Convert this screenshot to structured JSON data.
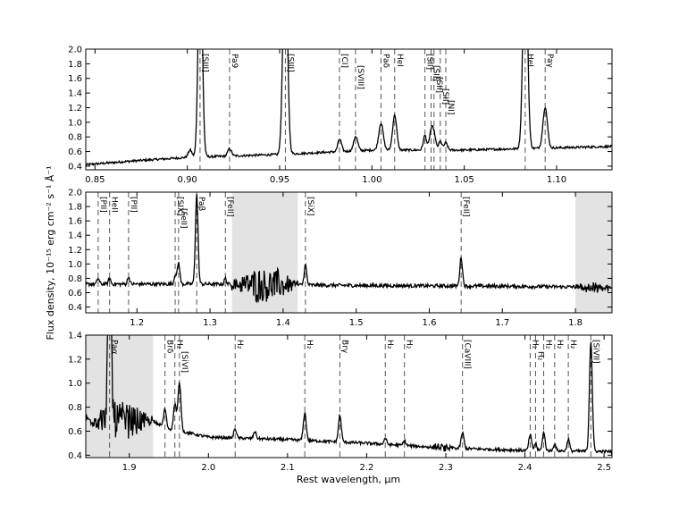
{
  "figure": {
    "ylabel": "Flux density, 10⁻¹⁵ erg cm⁻² s⁻¹ Å⁻¹",
    "xlabel": "Rest wavelength, μm"
  },
  "chart_data": [
    {
      "type": "line",
      "xlim": [
        0.845,
        1.13
      ],
      "ylim": [
        0.35,
        2.0
      ],
      "xticks": [
        0.85,
        0.9,
        0.95,
        1.0,
        1.05,
        1.1
      ],
      "xtick_labels": [
        "0.85",
        "0.90",
        "0.95",
        "1.00",
        "1.05",
        "1.10"
      ],
      "yticks": [
        0.4,
        0.6,
        0.8,
        1.0,
        1.2,
        1.4,
        1.6,
        1.8,
        2.0
      ],
      "ytick_labels": [
        "0.4",
        "0.6",
        "0.8",
        "1.0",
        "1.2",
        "1.4",
        "1.6",
        "1.8",
        "2.0"
      ],
      "shaded": [],
      "continuum": [
        [
          0.845,
          0.42
        ],
        [
          0.87,
          0.47
        ],
        [
          0.9,
          0.52
        ],
        [
          0.95,
          0.56
        ],
        [
          1.0,
          0.62
        ],
        [
          1.05,
          0.62
        ],
        [
          1.13,
          0.67
        ]
      ],
      "noise": 0.015,
      "peaks": [
        {
          "x": 0.907,
          "h": 3.0,
          "w": 0.0011
        },
        {
          "x": 0.9015,
          "h": 0.1,
          "w": 0.001
        },
        {
          "x": 0.9229,
          "h": 0.1,
          "w": 0.001
        },
        {
          "x": 0.953,
          "h": 3.0,
          "w": 0.0012
        },
        {
          "x": 0.9825,
          "h": 0.17,
          "w": 0.001
        },
        {
          "x": 0.9912,
          "h": 0.2,
          "w": 0.0011
        },
        {
          "x": 1.0049,
          "h": 0.37,
          "w": 0.0012
        },
        {
          "x": 1.0123,
          "h": 0.48,
          "w": 0.0011
        },
        {
          "x": 1.0287,
          "h": 0.2,
          "w": 0.0009
        },
        {
          "x": 1.032,
          "h": 0.25,
          "w": 0.0009
        },
        {
          "x": 1.0336,
          "h": 0.22,
          "w": 0.0009
        },
        {
          "x": 1.037,
          "h": 0.12,
          "w": 0.0009
        },
        {
          "x": 1.04,
          "h": 0.1,
          "w": 0.0009
        },
        {
          "x": 1.083,
          "h": 3.0,
          "w": 0.0012
        },
        {
          "x": 1.0938,
          "h": 0.56,
          "w": 0.0012
        }
      ],
      "lines": [
        {
          "x": 0.9069,
          "label": "[SIII]",
          "level": 0
        },
        {
          "x": 0.9229,
          "label": "Pa9",
          "level": 0
        },
        {
          "x": 0.9531,
          "label": "[SIII]",
          "level": 0
        },
        {
          "x": 0.9824,
          "label": "[CI]",
          "level": 0
        },
        {
          "x": 0.9911,
          "label": "[SVIII]",
          "level": 1
        },
        {
          "x": 1.0049,
          "label": "Paδ",
          "level": 0
        },
        {
          "x": 1.0123,
          "label": "HeI",
          "level": 0
        },
        {
          "x": 1.0287,
          "label": "[SII]",
          "level": 0
        },
        {
          "x": 1.032,
          "label": "[SII]",
          "level": 1
        },
        {
          "x": 1.0336,
          "label": "[SII]",
          "level": 2
        },
        {
          "x": 1.037,
          "label": "[SII]",
          "level": 3
        },
        {
          "x": 1.04,
          "label": "[NI]",
          "level": 4
        },
        {
          "x": 1.083,
          "label": "HeI",
          "level": 0
        },
        {
          "x": 1.0938,
          "label": "Paγ",
          "level": 0
        }
      ]
    },
    {
      "type": "line",
      "xlim": [
        1.13,
        1.85
      ],
      "ylim": [
        0.32,
        2.0
      ],
      "xticks": [
        1.2,
        1.3,
        1.4,
        1.5,
        1.6,
        1.7,
        1.8
      ],
      "xtick_labels": [
        "1.2",
        "1.3",
        "1.4",
        "1.5",
        "1.6",
        "1.7",
        "1.8"
      ],
      "yticks": [
        0.4,
        0.6,
        0.8,
        1.0,
        1.2,
        1.4,
        1.6,
        1.8,
        2.0
      ],
      "ytick_labels": [
        "0.4",
        "0.6",
        "0.8",
        "1.0",
        "1.2",
        "1.4",
        "1.6",
        "1.8",
        "2.0"
      ],
      "shaded": [
        [
          1.33,
          1.42
        ],
        [
          1.8,
          1.85
        ]
      ],
      "continuum": [
        [
          1.13,
          0.72
        ],
        [
          1.3,
          0.72
        ],
        [
          1.5,
          0.7
        ],
        [
          1.7,
          0.69
        ],
        [
          1.8,
          0.68
        ],
        [
          1.85,
          0.66
        ]
      ],
      "noise": 0.025,
      "noisy_regions": [
        {
          "from": 1.33,
          "to": 1.42,
          "amp": 0.5
        },
        {
          "from": 1.8,
          "to": 1.85,
          "amp": 0.15
        }
      ],
      "peaks": [
        {
          "x": 1.147,
          "h": 0.08,
          "w": 0.0015
        },
        {
          "x": 1.1626,
          "h": 0.08,
          "w": 0.0015
        },
        {
          "x": 1.1886,
          "h": 0.1,
          "w": 0.0015
        },
        {
          "x": 1.2523,
          "h": 0.13,
          "w": 0.0015
        },
        {
          "x": 1.257,
          "h": 0.3,
          "w": 0.0017
        },
        {
          "x": 1.2818,
          "h": 1.25,
          "w": 0.0018
        },
        {
          "x": 1.321,
          "h": 0.08,
          "w": 0.0015
        },
        {
          "x": 1.4305,
          "h": 0.28,
          "w": 0.0017
        },
        {
          "x": 1.6436,
          "h": 0.4,
          "w": 0.0018
        }
      ],
      "lines": [
        {
          "x": 1.147,
          "label": "[PII]",
          "level": 0
        },
        {
          "x": 1.1626,
          "label": "HeII",
          "level": 0
        },
        {
          "x": 1.1886,
          "label": "[PII]",
          "level": 0
        },
        {
          "x": 1.2523,
          "label": "[SIX]",
          "level": 0
        },
        {
          "x": 1.257,
          "label": "[FeII]",
          "level": 1
        },
        {
          "x": 1.2818,
          "label": "Paβ",
          "level": 0
        },
        {
          "x": 1.321,
          "label": "[FeII]",
          "level": 0
        },
        {
          "x": 1.4305,
          "label": "[SiX]",
          "level": 0
        },
        {
          "x": 1.6436,
          "label": "[FeII]",
          "level": 0
        }
      ]
    },
    {
      "type": "line",
      "xlim": [
        1.845,
        2.51
      ],
      "ylim": [
        0.38,
        1.4
      ],
      "xticks": [
        1.9,
        2.0,
        2.1,
        2.2,
        2.3,
        2.4,
        2.5
      ],
      "xtick_labels": [
        "1.9",
        "2.0",
        "2.1",
        "2.2",
        "2.3",
        "2.4",
        "2.5"
      ],
      "yticks": [
        0.4,
        0.6,
        0.8,
        1.0,
        1.2,
        1.4
      ],
      "ytick_labels": [
        "0.4",
        "0.6",
        "0.8",
        "1.0",
        "1.2",
        "1.4"
      ],
      "shaded": [
        [
          1.845,
          1.93
        ]
      ],
      "continuum": [
        [
          1.845,
          0.7
        ],
        [
          1.93,
          0.68
        ],
        [
          1.95,
          0.62
        ],
        [
          2.0,
          0.55
        ],
        [
          2.1,
          0.53
        ],
        [
          2.2,
          0.5
        ],
        [
          2.3,
          0.46
        ],
        [
          2.4,
          0.44
        ],
        [
          2.51,
          0.43
        ]
      ],
      "noise": 0.012,
      "noisy_regions": [
        {
          "from": 1.845,
          "to": 1.93,
          "amp": 0.3
        },
        {
          "from": 2.28,
          "to": 2.31,
          "amp": 0.05
        }
      ],
      "peaks": [
        {
          "x": 1.8751,
          "h": 1.5,
          "w": 0.002
        },
        {
          "x": 1.9451,
          "h": 0.15,
          "w": 0.0017
        },
        {
          "x": 1.9576,
          "h": 0.22,
          "w": 0.0017
        },
        {
          "x": 1.9634,
          "h": 0.4,
          "w": 0.0019
        },
        {
          "x": 2.0338,
          "h": 0.08,
          "w": 0.0016
        },
        {
          "x": 2.0587,
          "h": 0.06,
          "w": 0.0016
        },
        {
          "x": 2.1218,
          "h": 0.23,
          "w": 0.0018
        },
        {
          "x": 2.1661,
          "h": 0.22,
          "w": 0.0018
        },
        {
          "x": 2.2235,
          "h": 0.05,
          "w": 0.0016
        },
        {
          "x": 2.2477,
          "h": 0.04,
          "w": 0.0016
        },
        {
          "x": 2.3211,
          "h": 0.13,
          "w": 0.0018
        },
        {
          "x": 2.4066,
          "h": 0.13,
          "w": 0.0017
        },
        {
          "x": 2.4134,
          "h": 0.06,
          "w": 0.0015
        },
        {
          "x": 2.4237,
          "h": 0.15,
          "w": 0.0017
        },
        {
          "x": 2.4375,
          "h": 0.06,
          "w": 0.0015
        },
        {
          "x": 2.4548,
          "h": 0.1,
          "w": 0.0016
        },
        {
          "x": 2.4833,
          "h": 0.92,
          "w": 0.0018
        }
      ],
      "lines": [
        {
          "x": 1.8751,
          "label": "Paα",
          "level": 0
        },
        {
          "x": 1.9451,
          "label": "Brδ",
          "level": 0
        },
        {
          "x": 1.9576,
          "label": "H₂",
          "level": 0
        },
        {
          "x": 1.9634,
          "label": "[SiVI]",
          "level": 1
        },
        {
          "x": 2.0338,
          "label": "H₂",
          "level": 0
        },
        {
          "x": 2.1218,
          "label": "H₂",
          "level": 0
        },
        {
          "x": 2.1661,
          "label": "Brγ",
          "level": 0
        },
        {
          "x": 2.2235,
          "label": "H₂",
          "level": 0
        },
        {
          "x": 2.2477,
          "label": "H₂",
          "level": 0
        },
        {
          "x": 2.3211,
          "label": "[CaVIII]",
          "level": 0
        },
        {
          "x": 2.4066,
          "label": "H₂",
          "level": 0
        },
        {
          "x": 2.4134,
          "label": "H₂",
          "level": 1
        },
        {
          "x": 2.4237,
          "label": "H₂",
          "level": 0
        },
        {
          "x": 2.4375,
          "label": "H₂",
          "level": 0
        },
        {
          "x": 2.4548,
          "label": "H₂",
          "level": 0
        },
        {
          "x": 2.4833,
          "label": "[SiVII]",
          "level": 0
        }
      ]
    }
  ]
}
